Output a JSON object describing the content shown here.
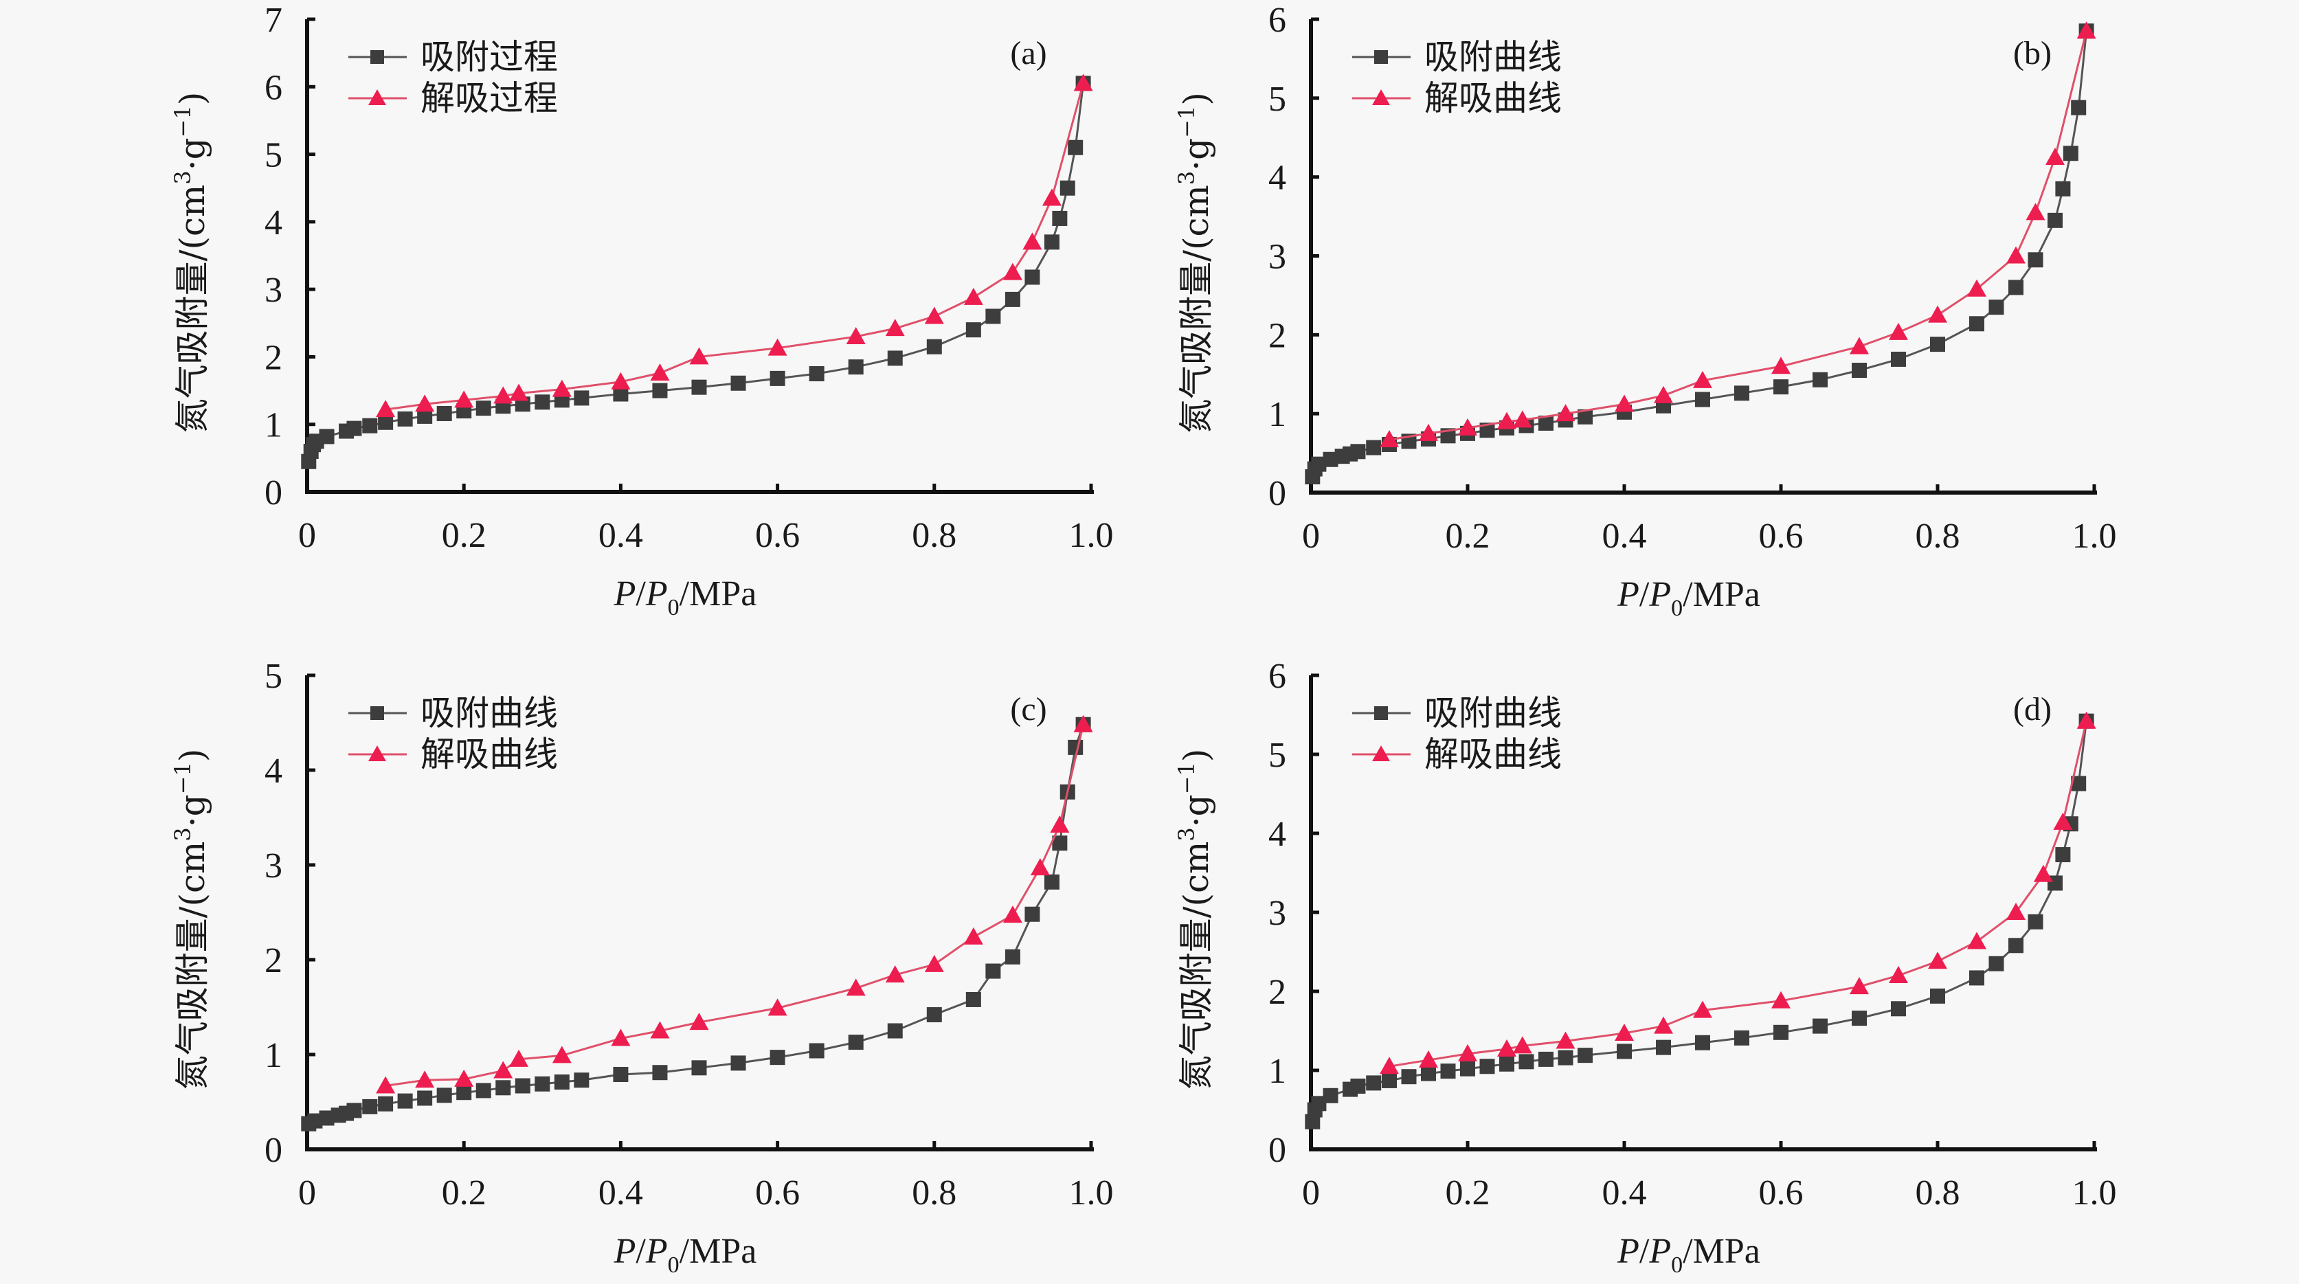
{
  "colors": {
    "adsorption": "#3d3d3d",
    "desorption": "#ee1d4f",
    "axis": "#111111",
    "background": "#f7f7f7"
  },
  "chart_data": [
    {
      "type": "line",
      "panel_label": "(a)",
      "xlabel": {
        "p": "P",
        "slash1": "/",
        "p0": "P",
        "sub": "0",
        "unit": "/MPa"
      },
      "ylabel": "氮气吸附量/(cm³·g⁻¹)",
      "ylabel_parts": {
        "main": "氮气吸附量/(cm",
        "sup1": "3",
        "mid": "·g",
        "sup2": "−1",
        "end": ")"
      },
      "xlim": [
        0,
        1.0
      ],
      "ylim": [
        0,
        7
      ],
      "x_ticks": [
        "0",
        "0.2",
        "0.4",
        "0.6",
        "0.8",
        "1.0"
      ],
      "y_ticks": [
        "0",
        "1",
        "2",
        "3",
        "4",
        "5",
        "6",
        "7"
      ],
      "legend_position": "top-left",
      "series": [
        {
          "name": "吸附过程",
          "marker": "square",
          "x": [
            0.002,
            0.005,
            0.008,
            0.012,
            0.025,
            0.05,
            0.06,
            0.08,
            0.1,
            0.125,
            0.15,
            0.175,
            0.2,
            0.225,
            0.25,
            0.275,
            0.3,
            0.325,
            0.35,
            0.4,
            0.45,
            0.5,
            0.55,
            0.6,
            0.65,
            0.7,
            0.75,
            0.8,
            0.85,
            0.875,
            0.9,
            0.925,
            0.95,
            0.96,
            0.97,
            0.98,
            0.99
          ],
          "y": [
            0.45,
            0.6,
            0.7,
            0.75,
            0.82,
            0.9,
            0.94,
            0.98,
            1.03,
            1.08,
            1.12,
            1.16,
            1.2,
            1.24,
            1.27,
            1.3,
            1.33,
            1.36,
            1.39,
            1.45,
            1.5,
            1.55,
            1.61,
            1.68,
            1.75,
            1.85,
            1.98,
            2.15,
            2.4,
            2.6,
            2.85,
            3.18,
            3.7,
            4.05,
            4.5,
            5.1,
            6.05
          ]
        },
        {
          "name": "解吸过程",
          "marker": "triangle",
          "x": [
            0.1,
            0.15,
            0.2,
            0.25,
            0.27,
            0.325,
            0.4,
            0.45,
            0.5,
            0.6,
            0.7,
            0.75,
            0.8,
            0.85,
            0.9,
            0.925,
            0.95,
            0.99
          ],
          "y": [
            1.22,
            1.3,
            1.36,
            1.42,
            1.46,
            1.52,
            1.63,
            1.76,
            2.0,
            2.13,
            2.3,
            2.42,
            2.6,
            2.88,
            3.25,
            3.7,
            4.35,
            6.05
          ]
        }
      ]
    },
    {
      "type": "line",
      "panel_label": "(b)",
      "xlabel": {
        "p": "P",
        "slash1": "/",
        "p0": "P",
        "sub": "0",
        "unit": "/MPa"
      },
      "ylabel": "氮气吸附量/(cm³·g⁻¹)",
      "ylabel_parts": {
        "main": "氮气吸附量/(cm",
        "sup1": "3",
        "mid": "·g",
        "sup2": "−1",
        "end": ")"
      },
      "xlim": [
        0,
        1.0
      ],
      "ylim": [
        0,
        6
      ],
      "x_ticks": [
        "0",
        "0.2",
        "0.4",
        "0.6",
        "0.8",
        "1.0"
      ],
      "y_ticks": [
        "0",
        "1",
        "2",
        "3",
        "4",
        "5",
        "6"
      ],
      "legend_position": "top-left",
      "series": [
        {
          "name": "吸附曲线",
          "marker": "square",
          "x": [
            0.002,
            0.005,
            0.01,
            0.025,
            0.04,
            0.05,
            0.06,
            0.08,
            0.1,
            0.125,
            0.15,
            0.175,
            0.2,
            0.225,
            0.25,
            0.275,
            0.3,
            0.325,
            0.35,
            0.4,
            0.45,
            0.5,
            0.55,
            0.6,
            0.65,
            0.7,
            0.75,
            0.8,
            0.85,
            0.875,
            0.9,
            0.925,
            0.95,
            0.96,
            0.97,
            0.98,
            0.99
          ],
          "y": [
            0.2,
            0.3,
            0.36,
            0.42,
            0.46,
            0.49,
            0.52,
            0.57,
            0.61,
            0.65,
            0.68,
            0.72,
            0.75,
            0.79,
            0.82,
            0.85,
            0.88,
            0.92,
            0.96,
            1.02,
            1.1,
            1.18,
            1.26,
            1.34,
            1.43,
            1.55,
            1.69,
            1.88,
            2.14,
            2.35,
            2.6,
            2.95,
            3.45,
            3.85,
            4.3,
            4.88,
            5.85
          ]
        },
        {
          "name": "解吸曲线",
          "marker": "triangle",
          "x": [
            0.1,
            0.15,
            0.2,
            0.25,
            0.27,
            0.325,
            0.4,
            0.45,
            0.5,
            0.6,
            0.7,
            0.75,
            0.8,
            0.85,
            0.9,
            0.925,
            0.95,
            0.99
          ],
          "y": [
            0.67,
            0.75,
            0.82,
            0.9,
            0.92,
            1.0,
            1.12,
            1.23,
            1.42,
            1.6,
            1.85,
            2.03,
            2.25,
            2.58,
            3.0,
            3.55,
            4.25,
            5.85
          ]
        }
      ]
    },
    {
      "type": "line",
      "panel_label": "(c)",
      "xlabel": {
        "p": "P",
        "slash1": "/",
        "p0": "P",
        "sub": "0",
        "unit": "/MPa"
      },
      "ylabel": "氮气吸附量/(cm³·g⁻¹)",
      "ylabel_parts": {
        "main": "氮气吸附量/(cm",
        "sup1": "3",
        "mid": "·g",
        "sup2": "−1",
        "end": ")"
      },
      "xlim": [
        0,
        1.0
      ],
      "ylim": [
        0,
        5
      ],
      "x_ticks": [
        "0",
        "0.2",
        "0.4",
        "0.6",
        "0.8",
        "1.0"
      ],
      "y_ticks": [
        "0",
        "1",
        "2",
        "3",
        "4",
        "5"
      ],
      "legend_position": "top-left",
      "series": [
        {
          "name": "吸附曲线",
          "marker": "square",
          "x": [
            0.002,
            0.01,
            0.025,
            0.04,
            0.05,
            0.06,
            0.08,
            0.1,
            0.125,
            0.15,
            0.175,
            0.2,
            0.225,
            0.25,
            0.275,
            0.3,
            0.325,
            0.35,
            0.4,
            0.45,
            0.5,
            0.55,
            0.6,
            0.65,
            0.7,
            0.75,
            0.8,
            0.85,
            0.875,
            0.9,
            0.925,
            0.95,
            0.96,
            0.97,
            0.98,
            0.99
          ],
          "y": [
            0.27,
            0.3,
            0.33,
            0.36,
            0.38,
            0.41,
            0.45,
            0.48,
            0.51,
            0.54,
            0.57,
            0.6,
            0.62,
            0.65,
            0.67,
            0.69,
            0.71,
            0.73,
            0.79,
            0.81,
            0.86,
            0.91,
            0.97,
            1.04,
            1.13,
            1.25,
            1.42,
            1.58,
            1.88,
            2.03,
            2.48,
            2.82,
            3.23,
            3.77,
            4.24,
            4.48
          ]
        },
        {
          "name": "解吸曲线",
          "marker": "triangle",
          "x": [
            0.1,
            0.15,
            0.2,
            0.25,
            0.27,
            0.325,
            0.4,
            0.45,
            0.5,
            0.6,
            0.7,
            0.75,
            0.8,
            0.85,
            0.9,
            0.935,
            0.96,
            0.99
          ],
          "y": [
            0.67,
            0.73,
            0.74,
            0.83,
            0.95,
            0.99,
            1.17,
            1.25,
            1.34,
            1.49,
            1.7,
            1.84,
            1.95,
            2.24,
            2.47,
            2.97,
            3.42,
            4.48
          ]
        }
      ]
    },
    {
      "type": "line",
      "panel_label": "(d)",
      "xlabel": {
        "p": "P",
        "slash1": "/",
        "p0": "P",
        "sub": "0",
        "unit": "/MPa"
      },
      "ylabel": "氮气吸附量/(cm³·g⁻¹)",
      "ylabel_parts": {
        "main": "氮气吸附量/(cm",
        "sup1": "3",
        "mid": "·g",
        "sup2": "−1",
        "end": ")"
      },
      "xlim": [
        0,
        1.0
      ],
      "ylim": [
        0,
        6
      ],
      "x_ticks": [
        "0",
        "0.2",
        "0.4",
        "0.6",
        "0.8",
        "1.0"
      ],
      "y_ticks": [
        "0",
        "1",
        "2",
        "3",
        "4",
        "5",
        "6"
      ],
      "legend_position": "top-left",
      "series": [
        {
          "name": "吸附曲线",
          "marker": "square",
          "x": [
            0.002,
            0.005,
            0.01,
            0.025,
            0.05,
            0.06,
            0.08,
            0.1,
            0.125,
            0.15,
            0.175,
            0.2,
            0.225,
            0.25,
            0.275,
            0.3,
            0.325,
            0.35,
            0.4,
            0.45,
            0.5,
            0.55,
            0.6,
            0.65,
            0.7,
            0.75,
            0.8,
            0.85,
            0.875,
            0.9,
            0.925,
            0.95,
            0.96,
            0.97,
            0.98,
            0.99
          ],
          "y": [
            0.35,
            0.5,
            0.58,
            0.68,
            0.76,
            0.8,
            0.84,
            0.87,
            0.92,
            0.96,
            0.99,
            1.02,
            1.05,
            1.08,
            1.11,
            1.14,
            1.16,
            1.19,
            1.24,
            1.29,
            1.35,
            1.41,
            1.48,
            1.56,
            1.66,
            1.78,
            1.94,
            2.17,
            2.35,
            2.58,
            2.88,
            3.37,
            3.73,
            4.12,
            4.63,
            5.42
          ]
        },
        {
          "name": "解吸曲线",
          "marker": "triangle",
          "x": [
            0.1,
            0.15,
            0.2,
            0.25,
            0.27,
            0.325,
            0.4,
            0.45,
            0.5,
            0.6,
            0.7,
            0.75,
            0.8,
            0.85,
            0.9,
            0.935,
            0.96,
            0.99
          ],
          "y": [
            1.05,
            1.13,
            1.21,
            1.27,
            1.31,
            1.37,
            1.47,
            1.56,
            1.76,
            1.88,
            2.06,
            2.2,
            2.38,
            2.63,
            3.0,
            3.48,
            4.14,
            5.42
          ]
        }
      ]
    }
  ]
}
